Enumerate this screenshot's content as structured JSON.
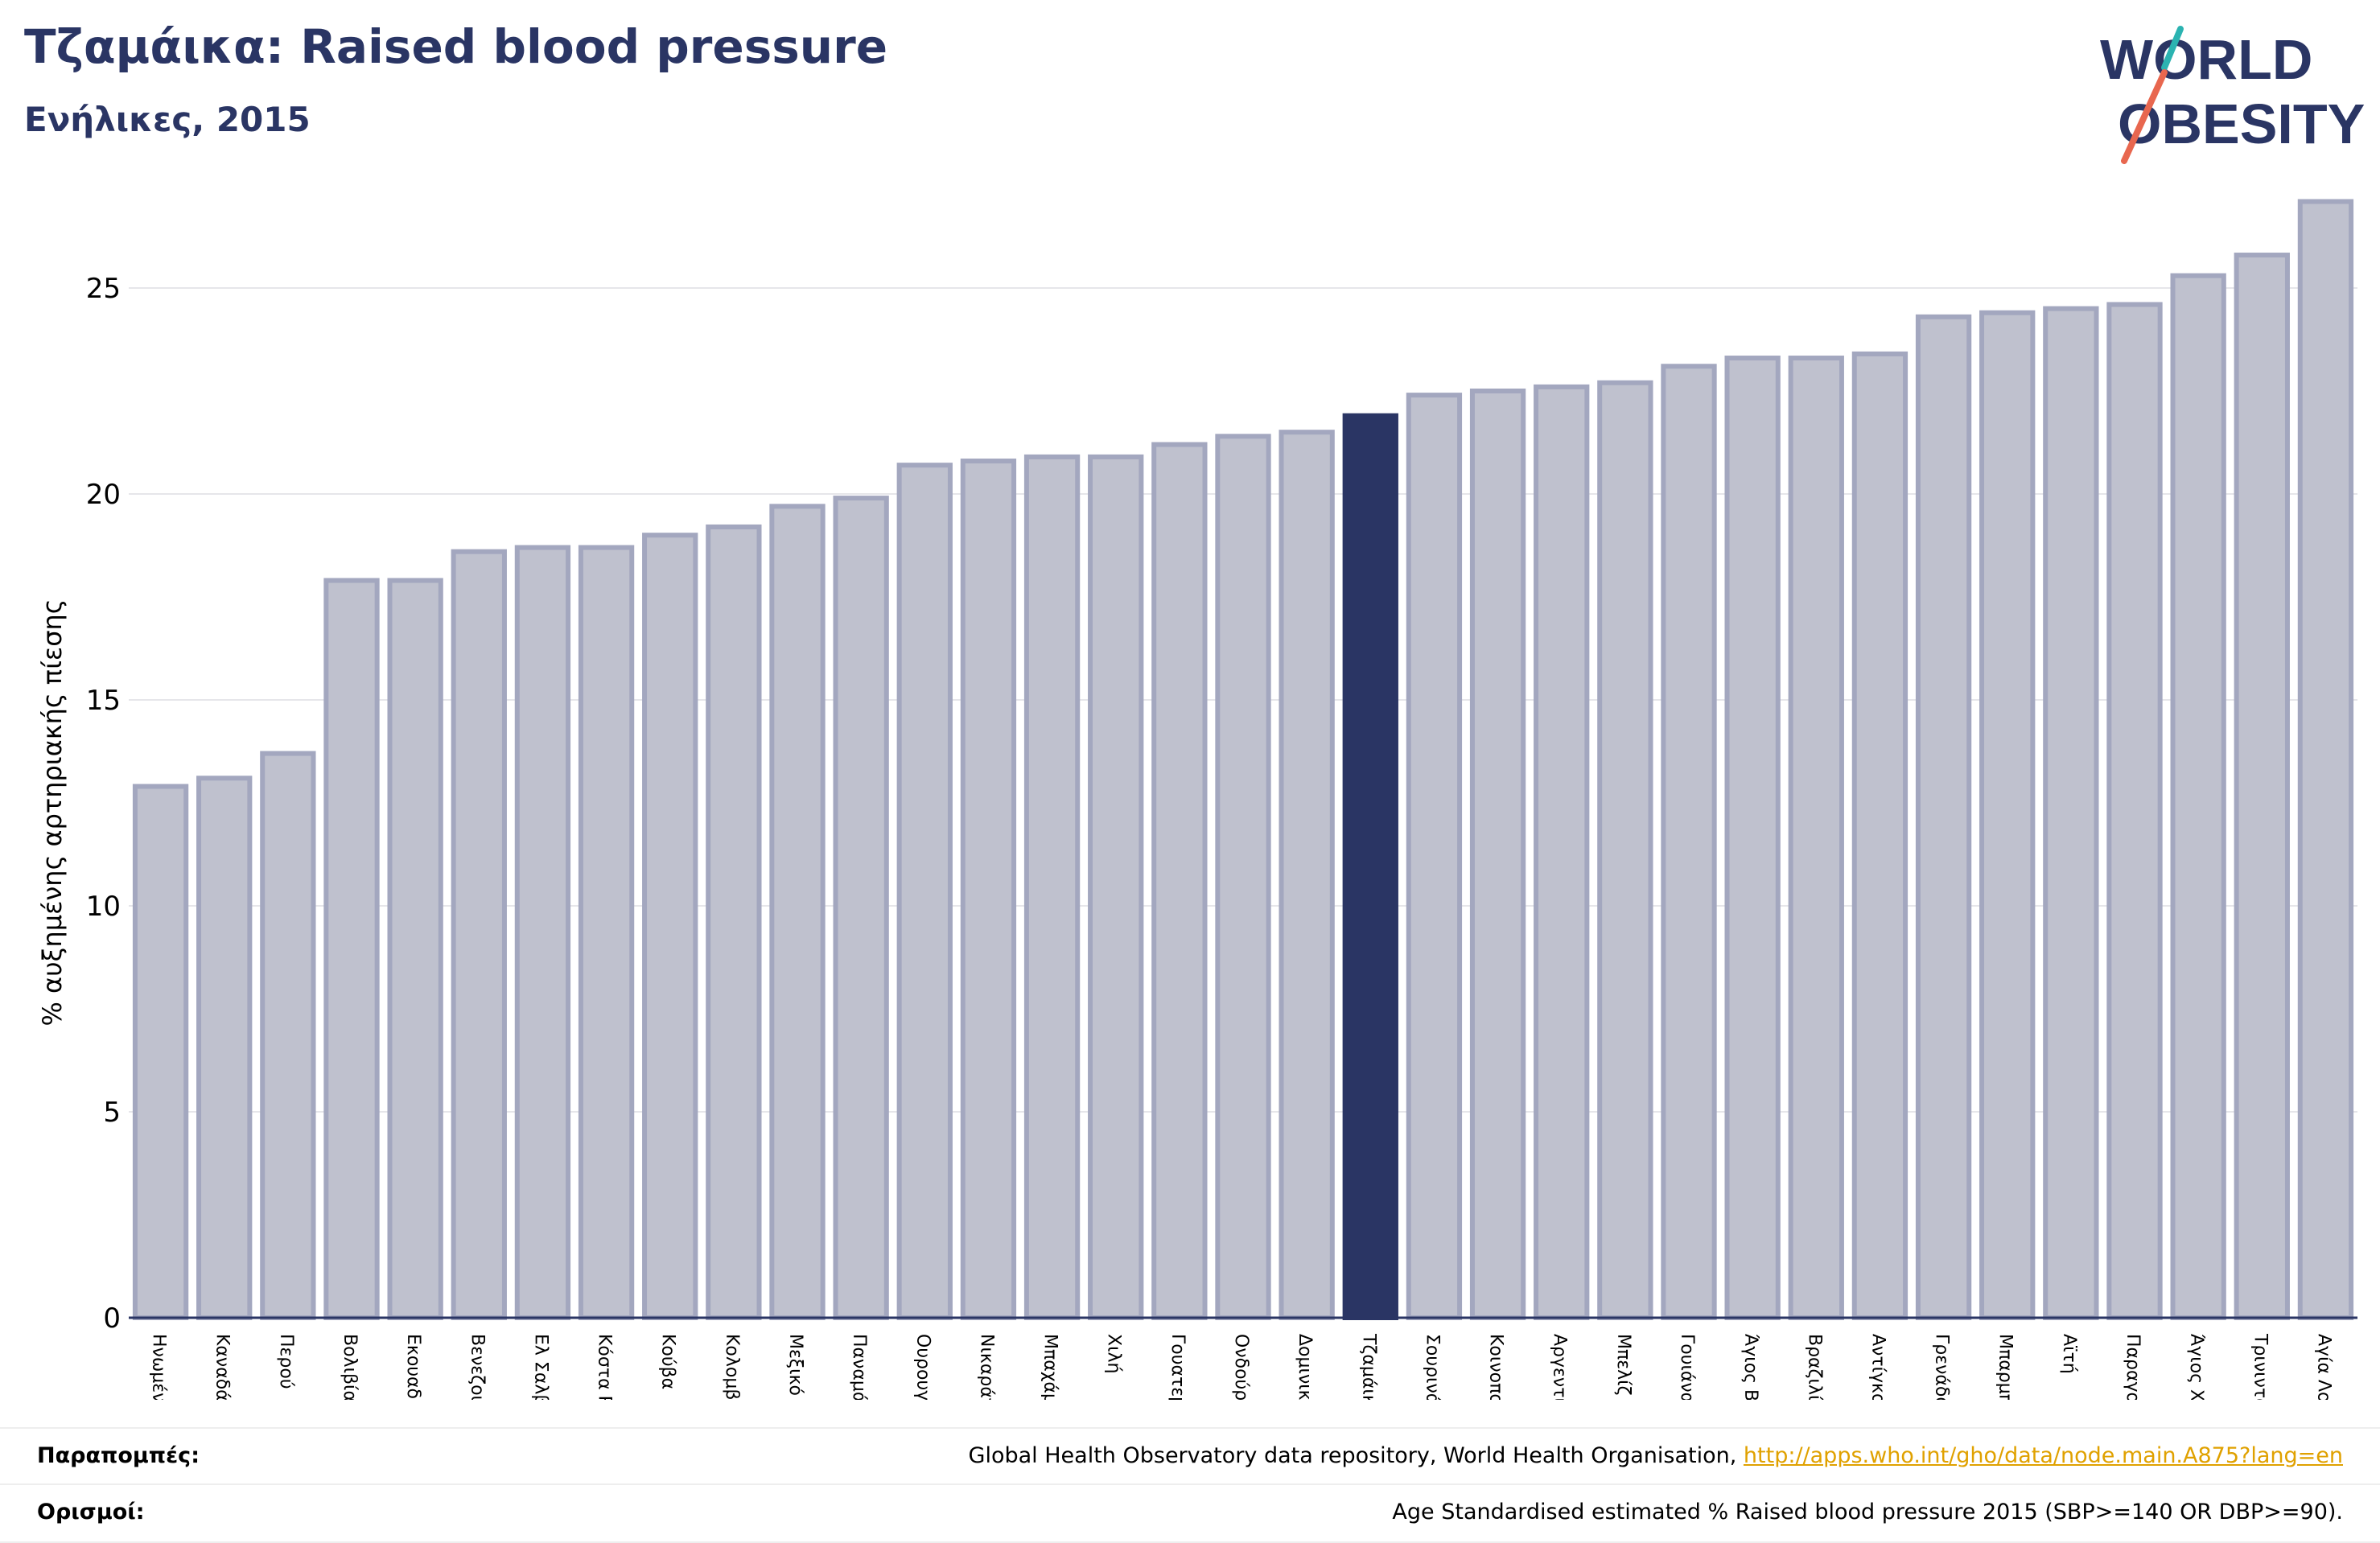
{
  "header": {
    "title": "Τζαμάικα: Raised blood pressure",
    "subtitle": "Ενήλικες, 2015"
  },
  "logo": {
    "line1": "WORLD",
    "line2": "OBESITY",
    "colors": {
      "text": "#2a3564",
      "slash_teal": "#2bb3b1",
      "slash_orange": "#e8674f"
    }
  },
  "colors": {
    "bar": "#bfc1ce",
    "bar_border": "#a3a7bf",
    "highlight": "#2a3564",
    "grid": "#e6e6ea",
    "axis": "#2a3564",
    "link": "#e0a100"
  },
  "chart_data": {
    "type": "bar",
    "ylabel": "% αυξημένης αρτηριακής πίεσης",
    "ylim": [
      0,
      27.5
    ],
    "yticks": [
      0,
      5,
      10,
      15,
      20,
      25
    ],
    "grid": true,
    "highlight": "Τζαμάικα",
    "categories": [
      "Ηνωμένες Πολιτείες",
      "Καναδάς",
      "Περού",
      "Βολιβία",
      "Εκουαδόρ",
      "Βενεζουέλα",
      "Ελ Σαλβαδόρ",
      "Κόστα Ρίκα",
      "Κούβα",
      "Κολομβία",
      "Μεξικό",
      "Παναμάς",
      "Ουρουγουάη",
      "Νικαράγουα",
      "Μπαχάμες",
      "Χιλή",
      "Γουατεμάλα",
      "Ονδούρα",
      "Δομινικανή Δημοκρατία",
      "Τζαμάικα",
      "Σουρινάμ",
      "Κοινοπολιτεία της Δομινίκας",
      "Αργεντινή",
      "Μπελίζ",
      "Γουιάνα",
      "Άγιος Βικέντιος και Γρεναδίνες",
      "Βραζιλία",
      "Αντίγκουα και Μπαρμπούντα",
      "Γρενάδα",
      "Μπαρμπάντος",
      "Αϊτή",
      "Παραγουάη",
      "Άγιος Χριστόφορος και Νέβις",
      "Τρινιντάντ και Τομπάγκο",
      "Αγία Λουκία"
    ],
    "values": [
      12.9,
      13.1,
      13.7,
      17.9,
      17.9,
      18.6,
      18.7,
      18.7,
      19.0,
      19.2,
      19.7,
      19.9,
      20.7,
      20.8,
      20.9,
      20.9,
      21.2,
      21.4,
      21.5,
      21.9,
      22.4,
      22.5,
      22.6,
      22.7,
      23.1,
      23.3,
      23.3,
      23.4,
      24.3,
      24.4,
      24.5,
      24.6,
      25.3,
      25.8,
      27.1
    ]
  },
  "footer": {
    "sources_label": "Παραπομπές:",
    "sources_text": "Global Health Observatory data repository, World Health Organisation,",
    "sources_link": "http://apps.who.int/gho/data/node.main.A875?lang=en",
    "definitions_label": "Ορισμοί:",
    "definitions_text": "Age Standardised estimated % Raised blood pressure 2015 (SBP>=140 OR DBP>=90)."
  }
}
